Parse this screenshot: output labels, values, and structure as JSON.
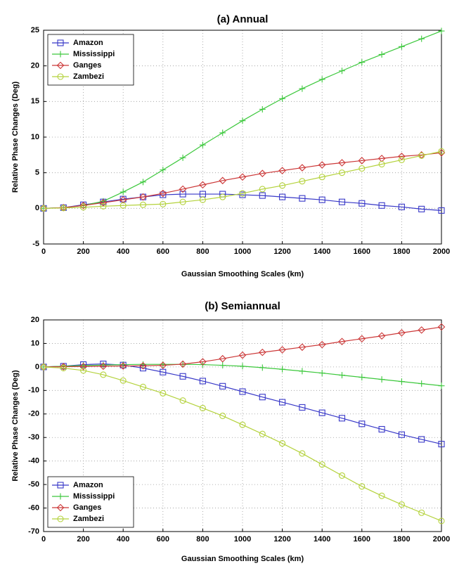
{
  "chart_data": [
    {
      "type": "line",
      "title": "(a) Annual",
      "xlabel": "Gaussian Smoothing Scales (km)",
      "ylabel": "Relative Phase Changes (Deg)",
      "x": [
        0,
        100,
        200,
        300,
        400,
        500,
        600,
        700,
        800,
        900,
        1000,
        1100,
        1200,
        1300,
        1400,
        1500,
        1600,
        1700,
        1800,
        1900,
        2000
      ],
      "xlim": [
        0,
        2000
      ],
      "xticks": [
        0,
        200,
        400,
        600,
        800,
        1000,
        1200,
        1400,
        1600,
        1800,
        2000
      ],
      "ylim": [
        -5,
        25
      ],
      "yticks": [
        -5,
        0,
        5,
        10,
        15,
        20,
        25
      ],
      "grid": true,
      "legend": "upper left",
      "series": [
        {
          "name": "Amazon",
          "color": "#3838c8",
          "marker": "square",
          "values": [
            0,
            0.1,
            0.5,
            0.9,
            1.3,
            1.6,
            1.9,
            2.0,
            2.0,
            2.0,
            1.9,
            1.8,
            1.6,
            1.4,
            1.2,
            0.9,
            0.7,
            0.4,
            0.2,
            -0.1,
            -0.3
          ]
        },
        {
          "name": "Mississippi",
          "color": "#3cc83c",
          "marker": "plus",
          "values": [
            0,
            0.1,
            0.4,
            1.0,
            2.3,
            3.7,
            5.4,
            7.1,
            8.9,
            10.6,
            12.3,
            13.9,
            15.4,
            16.8,
            18.1,
            19.3,
            20.5,
            21.6,
            22.7,
            23.8,
            24.9
          ]
        },
        {
          "name": "Ganges",
          "color": "#cc3838",
          "marker": "diamond",
          "values": [
            0,
            0.1,
            0.4,
            0.8,
            1.2,
            1.6,
            2.1,
            2.7,
            3.3,
            3.9,
            4.4,
            4.9,
            5.3,
            5.7,
            6.1,
            6.4,
            6.7,
            7.0,
            7.3,
            7.5,
            7.8
          ]
        },
        {
          "name": "Zambezi",
          "color": "#b4d23c",
          "marker": "circle",
          "values": [
            0,
            0.05,
            0.15,
            0.3,
            0.4,
            0.5,
            0.6,
            0.9,
            1.2,
            1.6,
            2.1,
            2.7,
            3.2,
            3.8,
            4.4,
            5.0,
            5.6,
            6.2,
            6.8,
            7.4,
            8.0
          ]
        }
      ]
    },
    {
      "type": "line",
      "title": "(b) Semiannual",
      "xlabel": "Gaussian Smoothing Scales (km)",
      "ylabel": "Relative Phase Changes (Deg)",
      "x": [
        0,
        100,
        200,
        300,
        400,
        500,
        600,
        700,
        800,
        900,
        1000,
        1100,
        1200,
        1300,
        1400,
        1500,
        1600,
        1700,
        1800,
        1900,
        2000
      ],
      "xlim": [
        0,
        2000
      ],
      "xticks": [
        0,
        200,
        400,
        600,
        800,
        1000,
        1200,
        1400,
        1600,
        1800,
        2000
      ],
      "ylim": [
        -70,
        20
      ],
      "yticks": [
        -70,
        -60,
        -50,
        -40,
        -30,
        -20,
        -10,
        0,
        10,
        20
      ],
      "grid": true,
      "legend": "lower left",
      "series": [
        {
          "name": "Amazon",
          "color": "#3838c8",
          "marker": "square",
          "values": [
            0,
            0.3,
            1.0,
            1.3,
            0.8,
            -0.5,
            -2.2,
            -4.0,
            -6.0,
            -8.2,
            -10.5,
            -12.8,
            -15.0,
            -17.2,
            -19.5,
            -21.8,
            -24.2,
            -26.5,
            -28.8,
            -30.8,
            -32.8
          ]
        },
        {
          "name": "Mississippi",
          "color": "#3cc83c",
          "marker": "plus",
          "values": [
            0,
            0.3,
            0.6,
            0.8,
            1.0,
            1.1,
            1.1,
            1.1,
            1.0,
            0.7,
            0.3,
            -0.3,
            -1.0,
            -1.8,
            -2.6,
            -3.5,
            -4.4,
            -5.3,
            -6.2,
            -7.1,
            -8.0
          ]
        },
        {
          "name": "Ganges",
          "color": "#cc3838",
          "marker": "diamond",
          "values": [
            0,
            0.1,
            0.2,
            0.3,
            0.4,
            0.5,
            0.7,
            1.2,
            2.2,
            3.5,
            5.0,
            6.2,
            7.3,
            8.4,
            9.5,
            10.8,
            12.0,
            13.2,
            14.5,
            15.7,
            17.0
          ]
        },
        {
          "name": "Zambezi",
          "color": "#b4d23c",
          "marker": "circle",
          "values": [
            0,
            -0.5,
            -1.5,
            -3.3,
            -5.8,
            -8.5,
            -11.2,
            -14.3,
            -17.5,
            -20.8,
            -24.6,
            -28.5,
            -32.5,
            -36.8,
            -41.5,
            -46.2,
            -50.8,
            -54.8,
            -58.5,
            -62,
            -65.5
          ]
        }
      ]
    }
  ]
}
